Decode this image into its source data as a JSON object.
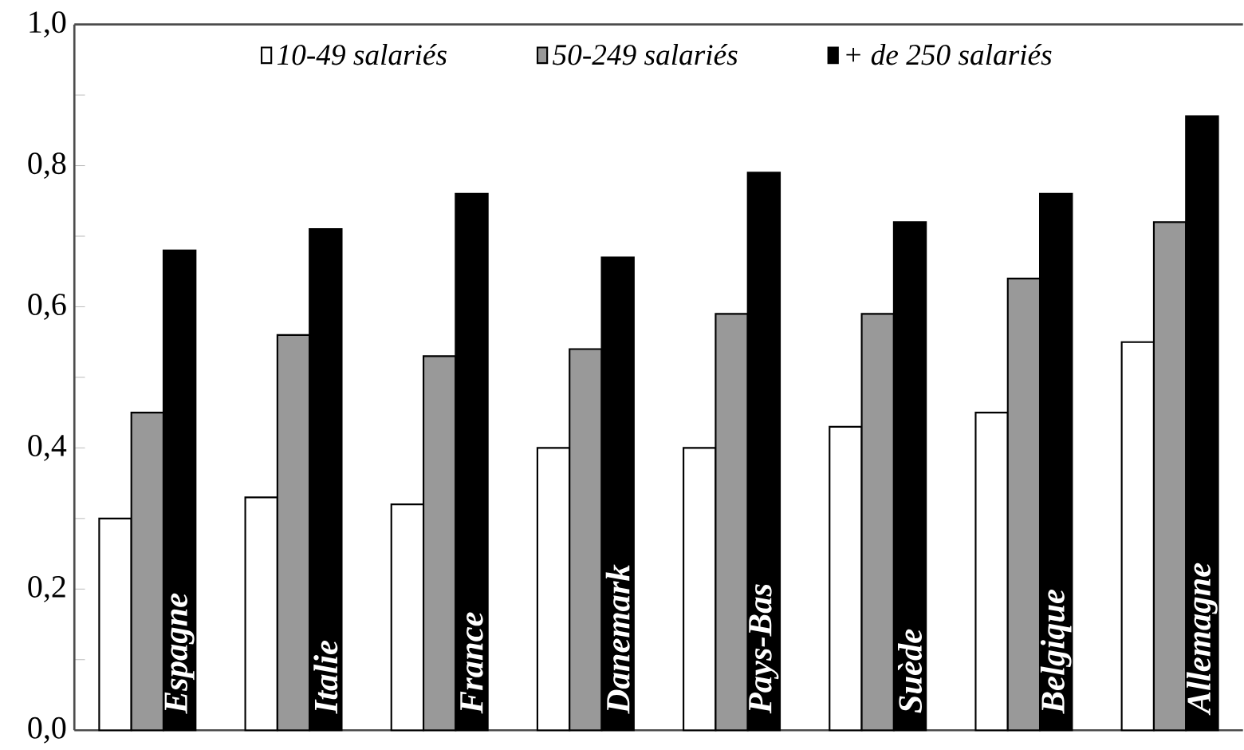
{
  "chart_data": {
    "type": "bar",
    "categories": [
      "Espagne",
      "Italie",
      "France",
      "Danemark",
      "Pays-Bas",
      "Suède",
      "Belgique",
      "Allemagne"
    ],
    "series": [
      {
        "name": "10-49 salariés",
        "color": "#ffffff",
        "values": [
          0.3,
          0.33,
          0.32,
          0.4,
          0.4,
          0.43,
          0.45,
          0.55
        ]
      },
      {
        "name": "50-249 salariés",
        "color": "#999999",
        "values": [
          0.45,
          0.56,
          0.53,
          0.54,
          0.59,
          0.59,
          0.64,
          0.72
        ]
      },
      {
        "name": "+ de 250 salariés",
        "color": "#000000",
        "values": [
          0.68,
          0.71,
          0.76,
          0.67,
          0.79,
          0.72,
          0.76,
          0.87
        ]
      }
    ],
    "ylim": [
      0,
      1
    ],
    "yticks": [
      {
        "value": 0,
        "label": "0,0"
      },
      {
        "value": 0.1,
        "label": null
      },
      {
        "value": 0.2,
        "label": "0,2"
      },
      {
        "value": 0.3,
        "label": null
      },
      {
        "value": 0.4,
        "label": "0,4"
      },
      {
        "value": 0.5,
        "label": null
      },
      {
        "value": 0.6,
        "label": "0,6"
      },
      {
        "value": 0.7,
        "label": null
      },
      {
        "value": 0.8,
        "label": "0,8"
      },
      {
        "value": 0.9,
        "label": null
      },
      {
        "value": 1,
        "label": "1,0"
      }
    ],
    "legend": "top",
    "grid": false
  }
}
